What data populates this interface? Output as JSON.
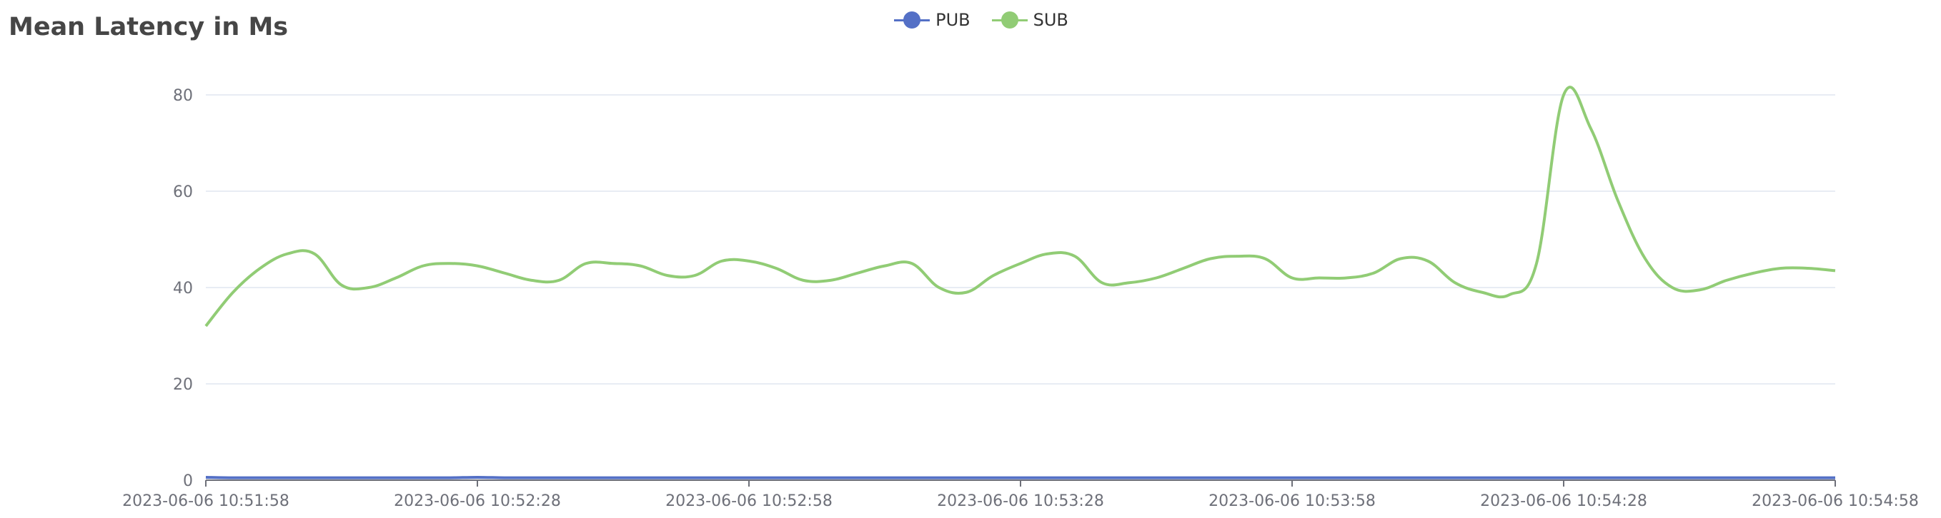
{
  "chart_data": {
    "type": "line",
    "title": "Mean Latency in Ms",
    "xlabel": "",
    "ylabel": "",
    "ylim": [
      0,
      80
    ],
    "yticks": [
      "0",
      "20",
      "40",
      "60",
      "80"
    ],
    "xticks": [
      "2023-06-06 10:51:58",
      "2023-06-06 10:52:28",
      "2023-06-06 10:52:58",
      "2023-06-06 10:53:28",
      "2023-06-06 10:53:58",
      "2023-06-06 10:54:28",
      "2023-06-06 10:54:58"
    ],
    "x": [
      "2023-06-06 10:51:58",
      "2023-06-06 10:52:01",
      "2023-06-06 10:52:04",
      "2023-06-06 10:52:07",
      "2023-06-06 10:52:10",
      "2023-06-06 10:52:13",
      "2023-06-06 10:52:16",
      "2023-06-06 10:52:19",
      "2023-06-06 10:52:22",
      "2023-06-06 10:52:25",
      "2023-06-06 10:52:28",
      "2023-06-06 10:52:31",
      "2023-06-06 10:52:34",
      "2023-06-06 10:52:37",
      "2023-06-06 10:52:40",
      "2023-06-06 10:52:43",
      "2023-06-06 10:52:46",
      "2023-06-06 10:52:49",
      "2023-06-06 10:52:52",
      "2023-06-06 10:52:55",
      "2023-06-06 10:52:58",
      "2023-06-06 10:53:01",
      "2023-06-06 10:53:04",
      "2023-06-06 10:53:07",
      "2023-06-06 10:53:10",
      "2023-06-06 10:53:13",
      "2023-06-06 10:53:16",
      "2023-06-06 10:53:19",
      "2023-06-06 10:53:22",
      "2023-06-06 10:53:25",
      "2023-06-06 10:53:28",
      "2023-06-06 10:53:31",
      "2023-06-06 10:53:34",
      "2023-06-06 10:53:37",
      "2023-06-06 10:53:40",
      "2023-06-06 10:53:43",
      "2023-06-06 10:53:46",
      "2023-06-06 10:53:49",
      "2023-06-06 10:53:52",
      "2023-06-06 10:53:55",
      "2023-06-06 10:53:58",
      "2023-06-06 10:54:01",
      "2023-06-06 10:54:04",
      "2023-06-06 10:54:07",
      "2023-06-06 10:54:10",
      "2023-06-06 10:54:13",
      "2023-06-06 10:54:16",
      "2023-06-06 10:54:19",
      "2023-06-06 10:54:22",
      "2023-06-06 10:54:25",
      "2023-06-06 10:54:28",
      "2023-06-06 10:54:31",
      "2023-06-06 10:54:34",
      "2023-06-06 10:54:37",
      "2023-06-06 10:54:40",
      "2023-06-06 10:54:43",
      "2023-06-06 10:54:46",
      "2023-06-06 10:54:49",
      "2023-06-06 10:54:52",
      "2023-06-06 10:54:55",
      "2023-06-06 10:54:58"
    ],
    "series": [
      {
        "name": "PUB",
        "color": "#5470c6",
        "values": [
          0.6,
          0.5,
          0.5,
          0.5,
          0.5,
          0.5,
          0.5,
          0.5,
          0.5,
          0.5,
          0.6,
          0.5,
          0.5,
          0.5,
          0.5,
          0.5,
          0.5,
          0.5,
          0.5,
          0.5,
          0.5,
          0.5,
          0.5,
          0.5,
          0.5,
          0.5,
          0.5,
          0.5,
          0.5,
          0.5,
          0.5,
          0.5,
          0.5,
          0.5,
          0.5,
          0.5,
          0.5,
          0.5,
          0.5,
          0.5,
          0.5,
          0.5,
          0.5,
          0.5,
          0.5,
          0.5,
          0.5,
          0.5,
          0.5,
          0.5,
          0.5,
          0.5,
          0.5,
          0.5,
          0.5,
          0.5,
          0.5,
          0.5,
          0.5,
          0.5,
          0.5
        ]
      },
      {
        "name": "SUB",
        "color": "#91cc75",
        "values": [
          32,
          39,
          44,
          47,
          47,
          40.5,
          40,
          42,
          44.5,
          45,
          44.5,
          43,
          41.5,
          41.5,
          45,
          45,
          44.5,
          42.5,
          42.5,
          45.5,
          45.5,
          44,
          41.5,
          41.5,
          43,
          44.5,
          45,
          40,
          39,
          42.5,
          45,
          47,
          46.5,
          41,
          41,
          42,
          44,
          46,
          46.5,
          46,
          42,
          42,
          42,
          43,
          46,
          45.5,
          41,
          39,
          38.5,
          45,
          80,
          73,
          58,
          46,
          40,
          39.5,
          41.5,
          43,
          44,
          44,
          43.5
        ]
      }
    ],
    "legend_position": "top-center",
    "grid": true
  }
}
